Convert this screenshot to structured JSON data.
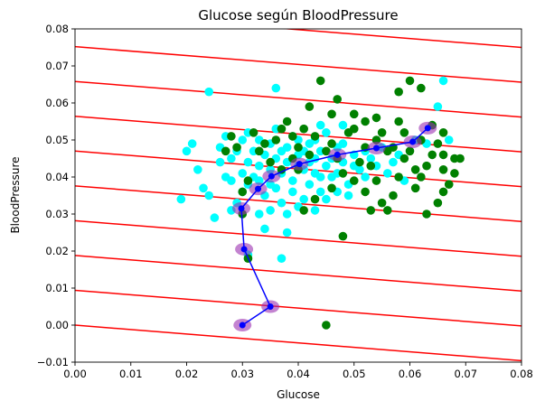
{
  "chart_data": {
    "type": "scatter",
    "title": "Glucose según BloodPressure",
    "xlabel": "Glucose",
    "ylabel": "BloodPressure",
    "xlim": [
      0.0,
      0.08
    ],
    "ylim": [
      -0.01,
      0.08
    ],
    "xticks": [
      "0.00",
      "0.01",
      "0.02",
      "0.03",
      "0.04",
      "0.05",
      "0.06",
      "0.07",
      "0.08"
    ],
    "yticks": [
      "−0.01",
      "0.00",
      "0.01",
      "0.02",
      "0.03",
      "0.04",
      "0.05",
      "0.06",
      "0.07",
      "0.08"
    ],
    "grid": false,
    "colors": {
      "cyan_points": "#00ffff",
      "green_points": "#008000",
      "contour_lines": "#ff0000",
      "path_line": "#0000ff",
      "path_ellipse_fill": "#9b30b0"
    },
    "contour_lines": {
      "slope": -0.12,
      "intercepts": [
        0.0,
        0.0094,
        0.0188,
        0.0282,
        0.0376,
        0.047,
        0.0564,
        0.0658,
        0.0752,
        0.0846
      ]
    },
    "path_points": [
      [
        0.03,
        0.0
      ],
      [
        0.035,
        0.005
      ],
      [
        0.0303,
        0.0205
      ],
      [
        0.0298,
        0.0315
      ],
      [
        0.0328,
        0.0368
      ],
      [
        0.0352,
        0.0402
      ],
      [
        0.0402,
        0.0435
      ],
      [
        0.047,
        0.046
      ],
      [
        0.054,
        0.0478
      ],
      [
        0.0605,
        0.0495
      ],
      [
        0.0632,
        0.0532
      ]
    ],
    "series": [
      {
        "color": "cyan",
        "points": [
          [
            0.024,
            0.063
          ],
          [
            0.036,
            0.064
          ],
          [
            0.021,
            0.049
          ],
          [
            0.02,
            0.047
          ],
          [
            0.019,
            0.034
          ],
          [
            0.022,
            0.042
          ],
          [
            0.023,
            0.037
          ],
          [
            0.025,
            0.029
          ],
          [
            0.024,
            0.035
          ],
          [
            0.026,
            0.048
          ],
          [
            0.027,
            0.051
          ],
          [
            0.028,
            0.045
          ],
          [
            0.028,
            0.039
          ],
          [
            0.029,
            0.033
          ],
          [
            0.03,
            0.041
          ],
          [
            0.03,
            0.036
          ],
          [
            0.031,
            0.052
          ],
          [
            0.031,
            0.044
          ],
          [
            0.032,
            0.047
          ],
          [
            0.032,
            0.04
          ],
          [
            0.033,
            0.05
          ],
          [
            0.033,
            0.043
          ],
          [
            0.034,
            0.035
          ],
          [
            0.034,
            0.046
          ],
          [
            0.035,
            0.042
          ],
          [
            0.035,
            0.038
          ],
          [
            0.036,
            0.053
          ],
          [
            0.036,
            0.045
          ],
          [
            0.037,
            0.041
          ],
          [
            0.037,
            0.033
          ],
          [
            0.038,
            0.048
          ],
          [
            0.038,
            0.044
          ],
          [
            0.039,
            0.039
          ],
          [
            0.039,
            0.036
          ],
          [
            0.04,
            0.05
          ],
          [
            0.04,
            0.046
          ],
          [
            0.041,
            0.042
          ],
          [
            0.041,
            0.034
          ],
          [
            0.042,
            0.049
          ],
          [
            0.042,
            0.038
          ],
          [
            0.043,
            0.045
          ],
          [
            0.043,
            0.041
          ],
          [
            0.044,
            0.047
          ],
          [
            0.044,
            0.036
          ],
          [
            0.045,
            0.052
          ],
          [
            0.045,
            0.043
          ],
          [
            0.046,
            0.04
          ],
          [
            0.047,
            0.048
          ],
          [
            0.048,
            0.044
          ],
          [
            0.049,
            0.038
          ],
          [
            0.05,
            0.046
          ],
          [
            0.051,
            0.042
          ],
          [
            0.052,
            0.04
          ],
          [
            0.053,
            0.045
          ],
          [
            0.054,
            0.043
          ],
          [
            0.055,
            0.048
          ],
          [
            0.056,
            0.041
          ],
          [
            0.057,
            0.044
          ],
          [
            0.058,
            0.046
          ],
          [
            0.059,
            0.039
          ],
          [
            0.061,
            0.05
          ],
          [
            0.063,
            0.049
          ],
          [
            0.065,
            0.059
          ],
          [
            0.066,
            0.066
          ],
          [
            0.067,
            0.05
          ],
          [
            0.038,
            0.025
          ],
          [
            0.037,
            0.018
          ],
          [
            0.031,
            0.019
          ],
          [
            0.034,
            0.026
          ],
          [
            0.028,
            0.031
          ],
          [
            0.026,
            0.044
          ],
          [
            0.027,
            0.04
          ],
          [
            0.029,
            0.047
          ],
          [
            0.03,
            0.05
          ],
          [
            0.031,
            0.038
          ],
          [
            0.033,
            0.039
          ],
          [
            0.035,
            0.049
          ],
          [
            0.036,
            0.037
          ],
          [
            0.037,
            0.047
          ],
          [
            0.039,
            0.051
          ],
          [
            0.04,
            0.043
          ],
          [
            0.041,
            0.047
          ],
          [
            0.042,
            0.044
          ],
          [
            0.043,
            0.05
          ],
          [
            0.044,
            0.04
          ],
          [
            0.046,
            0.045
          ],
          [
            0.047,
            0.041
          ],
          [
            0.048,
            0.049
          ],
          [
            0.05,
            0.043
          ],
          [
            0.052,
            0.047
          ],
          [
            0.038,
            0.03
          ],
          [
            0.04,
            0.032
          ],
          [
            0.043,
            0.031
          ],
          [
            0.045,
            0.034
          ],
          [
            0.047,
            0.036
          ],
          [
            0.049,
            0.035
          ],
          [
            0.033,
            0.03
          ],
          [
            0.035,
            0.031
          ],
          [
            0.044,
            0.054
          ],
          [
            0.048,
            0.054
          ]
        ]
      },
      {
        "color": "green",
        "points": [
          [
            0.045,
            0.0
          ],
          [
            0.044,
            0.066
          ],
          [
            0.047,
            0.061
          ],
          [
            0.05,
            0.057
          ],
          [
            0.054,
            0.056
          ],
          [
            0.055,
            0.052
          ],
          [
            0.058,
            0.055
          ],
          [
            0.06,
            0.066
          ],
          [
            0.062,
            0.064
          ],
          [
            0.064,
            0.054
          ],
          [
            0.065,
            0.049
          ],
          [
            0.066,
            0.046
          ],
          [
            0.066,
            0.042
          ],
          [
            0.067,
            0.038
          ],
          [
            0.068,
            0.045
          ],
          [
            0.069,
            0.045
          ],
          [
            0.068,
            0.041
          ],
          [
            0.066,
            0.036
          ],
          [
            0.065,
            0.033
          ],
          [
            0.063,
            0.03
          ],
          [
            0.061,
            0.037
          ],
          [
            0.061,
            0.042
          ],
          [
            0.059,
            0.045
          ],
          [
            0.058,
            0.04
          ],
          [
            0.057,
            0.035
          ],
          [
            0.056,
            0.031
          ],
          [
            0.054,
            0.039
          ],
          [
            0.053,
            0.043
          ],
          [
            0.052,
            0.048
          ],
          [
            0.051,
            0.044
          ],
          [
            0.05,
            0.039
          ],
          [
            0.049,
            0.052
          ],
          [
            0.048,
            0.041
          ],
          [
            0.047,
            0.045
          ],
          [
            0.046,
            0.049
          ],
          [
            0.045,
            0.047
          ],
          [
            0.043,
            0.051
          ],
          [
            0.042,
            0.046
          ],
          [
            0.041,
            0.053
          ],
          [
            0.04,
            0.048
          ],
          [
            0.039,
            0.045
          ],
          [
            0.038,
            0.055
          ],
          [
            0.037,
            0.042
          ],
          [
            0.036,
            0.05
          ],
          [
            0.035,
            0.044
          ],
          [
            0.033,
            0.047
          ],
          [
            0.031,
            0.039
          ],
          [
            0.03,
            0.036
          ],
          [
            0.029,
            0.048
          ],
          [
            0.028,
            0.051
          ],
          [
            0.048,
            0.024
          ],
          [
            0.043,
            0.034
          ],
          [
            0.041,
            0.031
          ],
          [
            0.046,
            0.037
          ],
          [
            0.052,
            0.036
          ],
          [
            0.053,
            0.031
          ],
          [
            0.055,
            0.033
          ],
          [
            0.057,
            0.048
          ],
          [
            0.059,
            0.052
          ],
          [
            0.06,
            0.047
          ],
          [
            0.062,
            0.05
          ],
          [
            0.064,
            0.046
          ],
          [
            0.066,
            0.052
          ],
          [
            0.058,
            0.063
          ],
          [
            0.056,
            0.047
          ],
          [
            0.054,
            0.05
          ],
          [
            0.052,
            0.055
          ],
          [
            0.05,
            0.053
          ],
          [
            0.046,
            0.057
          ],
          [
            0.042,
            0.059
          ],
          [
            0.039,
            0.051
          ],
          [
            0.04,
            0.042
          ],
          [
            0.037,
            0.053
          ],
          [
            0.034,
            0.049
          ],
          [
            0.032,
            0.052
          ],
          [
            0.03,
            0.03
          ],
          [
            0.031,
            0.018
          ],
          [
            0.027,
            0.047
          ],
          [
            0.063,
            0.043
          ],
          [
            0.062,
            0.04
          ]
        ]
      }
    ]
  }
}
